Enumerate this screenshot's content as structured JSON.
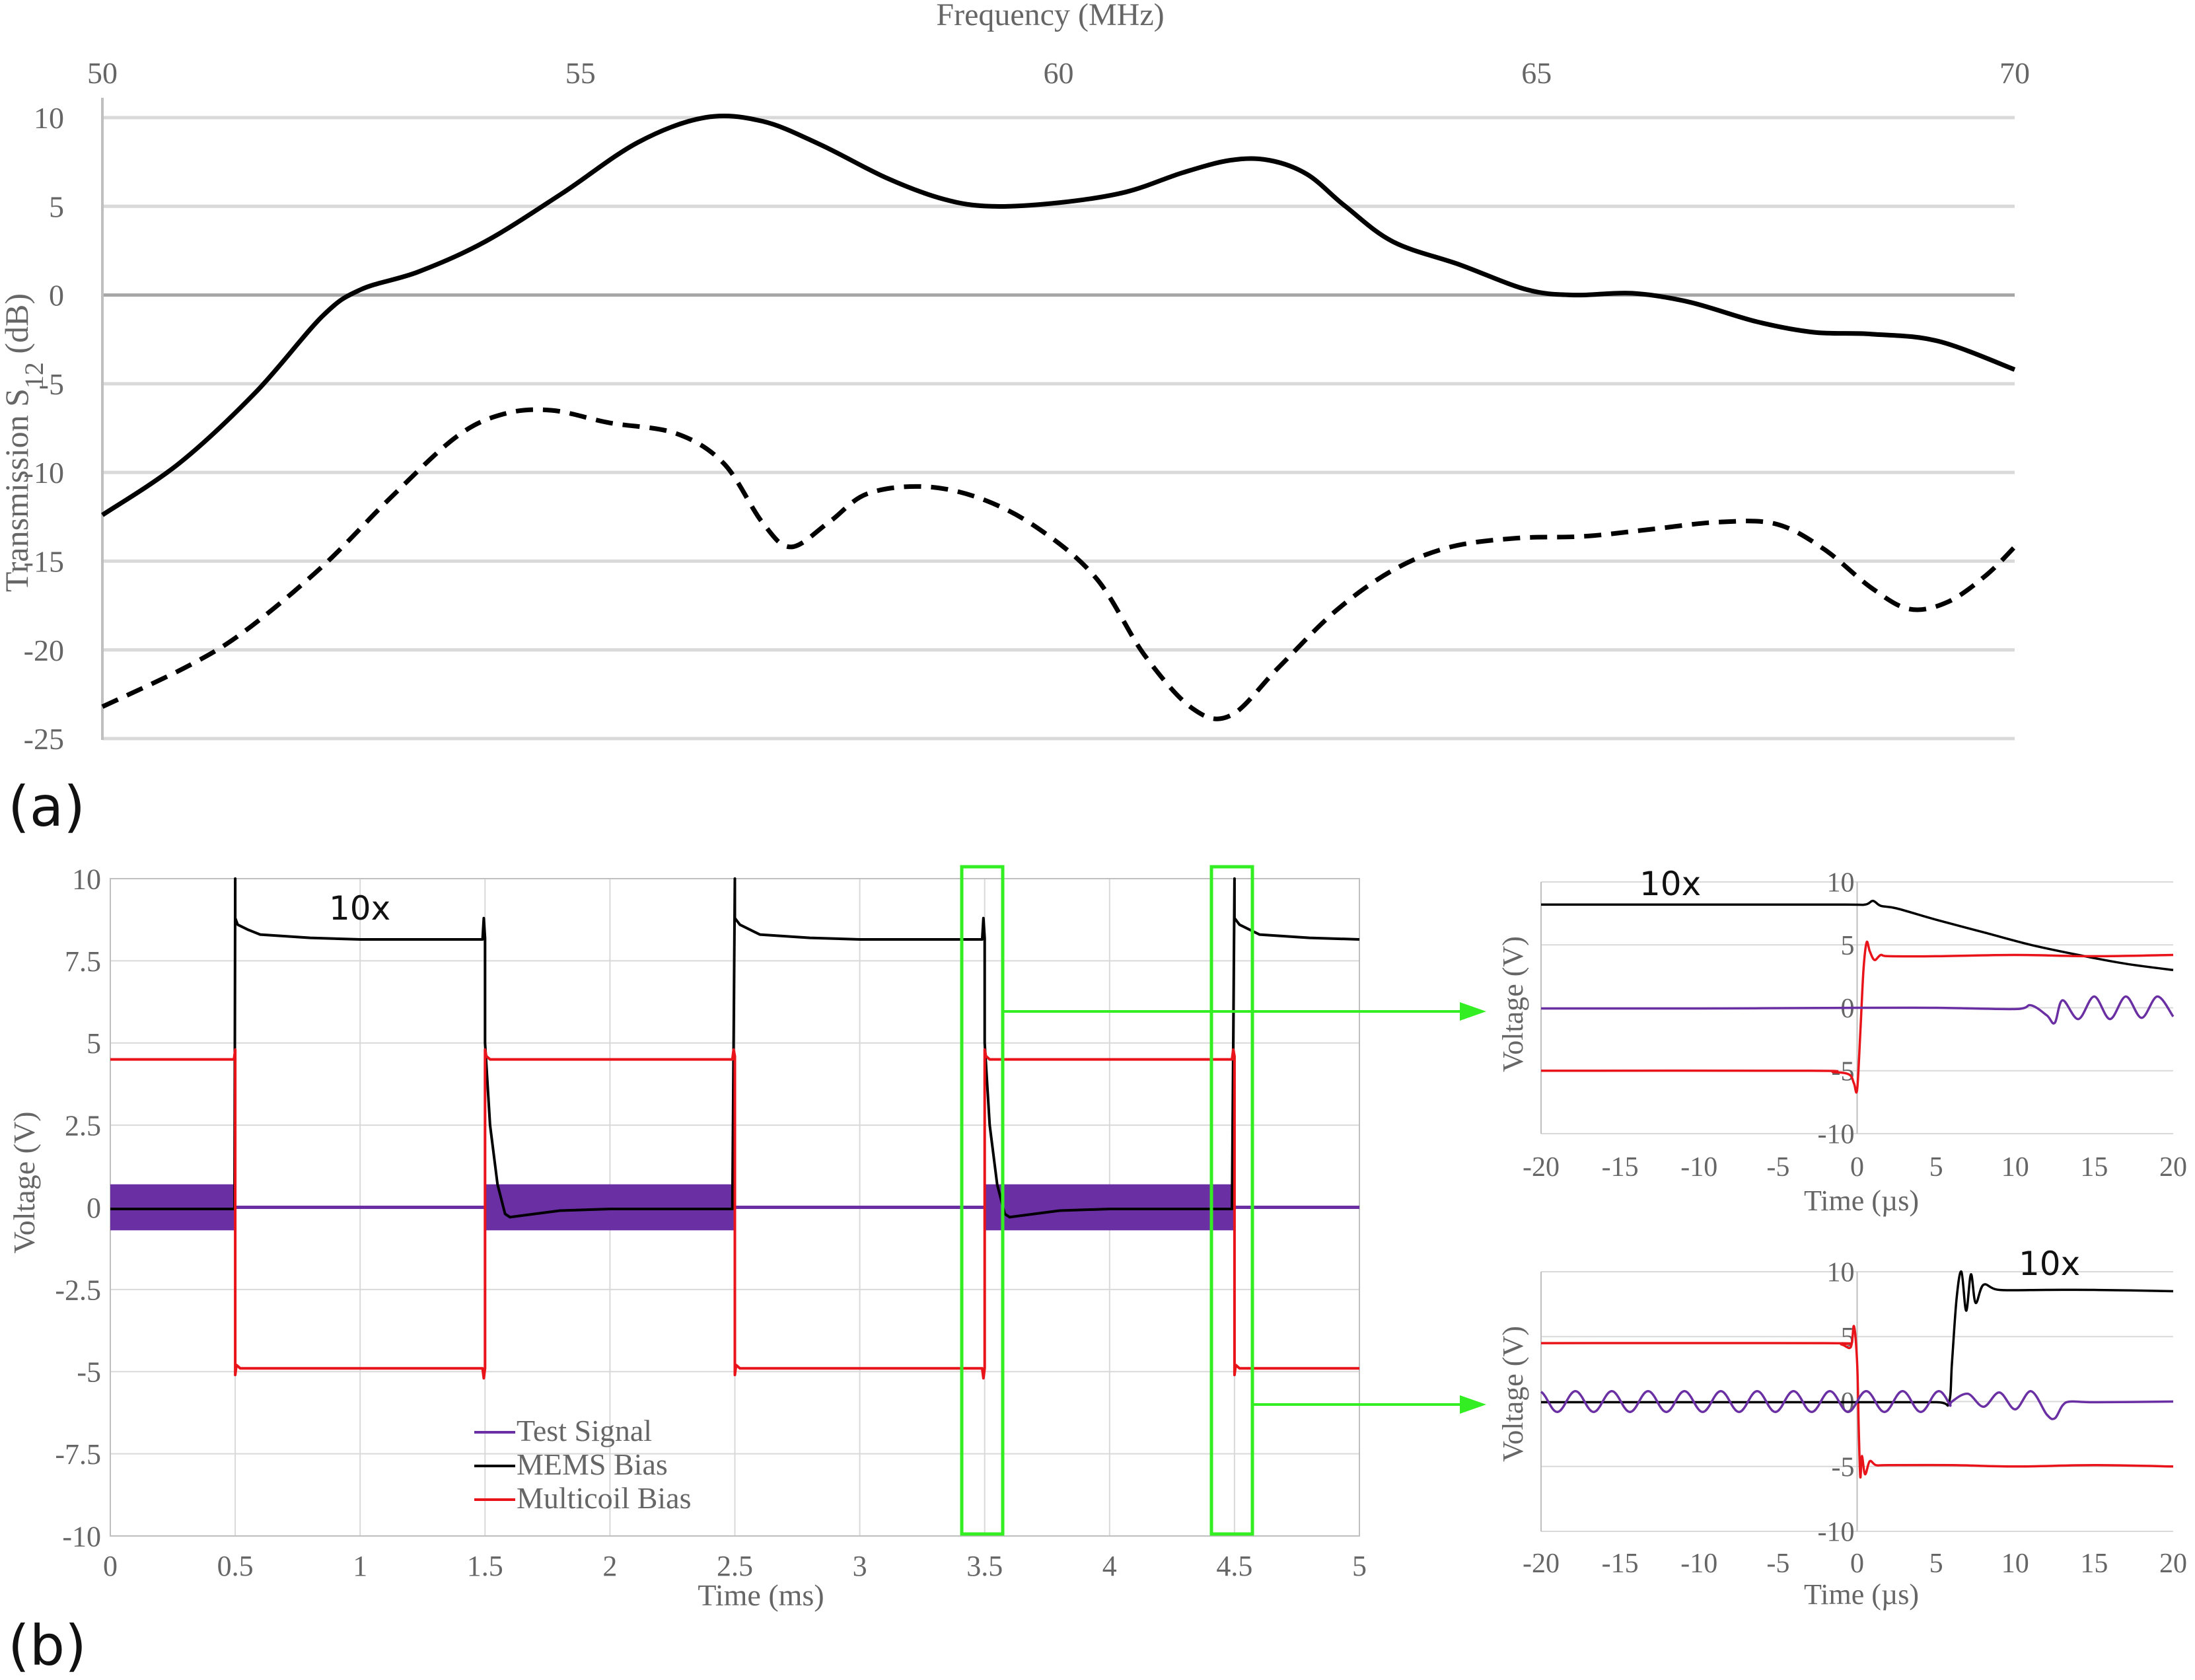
{
  "figure": {
    "panel_a_label": "(a)",
    "panel_b_label": "(b)"
  },
  "colors": {
    "test_signal": "#6a2fa3",
    "mems_bias": "#000000",
    "multicoil_bias": "#e8141a",
    "zoom_box": "#33ee22",
    "grid": "#d9d9d9",
    "text": "#666666"
  },
  "chart_data": [
    {
      "id": "a",
      "type": "line",
      "xlabel": "Frequency (MHz)",
      "ylabel": "Transmission S12 (dB)",
      "ylabel_main": "Transmission S",
      "ylabel_sub": "12",
      "ylabel_unit": " (dB)",
      "xlim": [
        50,
        70
      ],
      "ylim": [
        -25,
        10
      ],
      "xticks": [
        "50",
        "55",
        "60",
        "65",
        "70"
      ],
      "yticks": [
        "10",
        "5",
        "0",
        "-5",
        "-10",
        "-15",
        "-20",
        "-25"
      ],
      "grid": "horizontal",
      "series": [
        {
          "style": "solid",
          "x": [
            50,
            50.8,
            51.6,
            52.3,
            52.7,
            53.3,
            54,
            54.8,
            55.6,
            56.3,
            56.9,
            57.5,
            58.2,
            58.8,
            59.3,
            60,
            60.7,
            61.3,
            61.8,
            62.2,
            62.6,
            63,
            63.5,
            64.2,
            64.9,
            65.4,
            66,
            66.6,
            67.3,
            67.9,
            68.5,
            69.2,
            70
          ],
          "y": [
            -12.4,
            -9.5,
            -5.5,
            -1.2,
            0.3,
            1.3,
            3,
            5.7,
            8.6,
            10,
            9.8,
            8.5,
            6.6,
            5.4,
            5,
            5.2,
            5.8,
            6.9,
            7.6,
            7.6,
            6.8,
            5,
            3,
            1.7,
            0.3,
            0,
            0.1,
            -0.4,
            -1.5,
            -2.1,
            -2.2,
            -2.6,
            -4.2
          ]
        },
        {
          "style": "dashed",
          "x": [
            50,
            50.9,
            51.5,
            52.3,
            53,
            53.7,
            54.2,
            54.7,
            55.3,
            56,
            56.5,
            56.9,
            57.2,
            57.6,
            58,
            58.6,
            59.2,
            59.8,
            60.4,
            60.9,
            61.4,
            61.8,
            62.3,
            62.9,
            63.5,
            64.1,
            64.8,
            65.5,
            66.2,
            66.9,
            67.5,
            68,
            68.5,
            68.9,
            69.3,
            69.7,
            70
          ],
          "y": [
            -23.2,
            -20.9,
            -18.9,
            -15.3,
            -11.5,
            -8,
            -6.7,
            -6.5,
            -7.2,
            -7.8,
            -9.5,
            -12.8,
            -14.2,
            -12.8,
            -11.2,
            -10.8,
            -11.5,
            -13.2,
            -16,
            -20.3,
            -23.3,
            -23.7,
            -21,
            -17.8,
            -15.5,
            -14.2,
            -13.7,
            -13.6,
            -13.2,
            -12.8,
            -12.9,
            -14.3,
            -16.5,
            -17.7,
            -17.3,
            -15.8,
            -14.2
          ]
        }
      ]
    },
    {
      "id": "b-main",
      "type": "line",
      "xlabel": "Time (ms)",
      "ylabel": "Voltage (V)",
      "xlim": [
        0,
        5
      ],
      "ylim": [
        -10,
        10
      ],
      "xticks": [
        "0",
        "0.5",
        "1",
        "1.5",
        "2",
        "2.5",
        "3",
        "3.5",
        "4",
        "4.5",
        "5"
      ],
      "yticks": [
        "10",
        "7.5",
        "5",
        "2.5",
        "0",
        "-2.5",
        "-5",
        "-7.5",
        "-10"
      ],
      "grid": "both",
      "annotation": "10x",
      "legend": [
        "Test Signal",
        "MEMS Bias",
        "Multicoil Bias"
      ],
      "test_signal_bursts": [
        [
          0,
          0.5
        ],
        [
          1.5,
          2.5
        ],
        [
          3.5,
          4.5
        ]
      ],
      "test_signal_amplitude": 0.7,
      "series": [
        {
          "name": "MEMS Bias",
          "x": [
            0,
            0.497,
            0.5,
            0.5,
            0.51,
            0.55,
            0.6,
            0.8,
            1.0,
            1.3,
            1.49,
            1.495,
            1.5,
            1.5,
            1.52,
            1.55,
            1.58,
            1.6,
            1.65,
            1.8,
            2.0,
            2.3,
            2.49,
            2.5,
            2.5,
            2.52,
            2.6,
            2.8,
            3.0,
            3.3,
            3.49,
            3.495,
            3.5,
            3.5,
            3.52,
            3.55,
            3.58,
            3.6,
            3.65,
            3.8,
            4.0,
            4.3,
            4.49,
            4.5,
            4.5,
            4.52,
            4.6,
            4.8,
            5.0
          ],
          "y": [
            -0.05,
            -0.05,
            10,
            8.8,
            8.6,
            8.45,
            8.3,
            8.2,
            8.15,
            8.15,
            8.15,
            8.8,
            8.2,
            5,
            2.5,
            0.7,
            -0.2,
            -0.3,
            -0.25,
            -0.1,
            -0.05,
            -0.05,
            -0.05,
            10,
            8.8,
            8.6,
            8.3,
            8.2,
            8.15,
            8.15,
            8.15,
            8.8,
            8.2,
            5,
            2.5,
            0.7,
            -0.2,
            -0.3,
            -0.25,
            -0.1,
            -0.05,
            -0.05,
            -0.05,
            10,
            8.8,
            8.6,
            8.3,
            8.2,
            8.15
          ]
        },
        {
          "name": "Multicoil Bias",
          "x": [
            0,
            0.495,
            0.5,
            0.5,
            0.505,
            0.52,
            1.49,
            1.495,
            1.5,
            1.5,
            1.505,
            1.52,
            2.49,
            2.495,
            2.5,
            2.5,
            2.505,
            2.52,
            3.49,
            3.495,
            3.5,
            3.5,
            3.505,
            3.52,
            4.49,
            4.495,
            4.5,
            4.5,
            4.505,
            4.52,
            5.0
          ],
          "y": [
            4.5,
            4.5,
            4.8,
            -5.1,
            -4.8,
            -4.9,
            -4.9,
            -5.2,
            -4.9,
            4.8,
            4.6,
            4.5,
            4.5,
            4.8,
            4.6,
            -5.1,
            -4.8,
            -4.9,
            -4.9,
            -5.2,
            -4.9,
            4.8,
            4.6,
            4.5,
            4.5,
            4.8,
            4.6,
            -5.1,
            -4.8,
            -4.9,
            -4.9
          ]
        }
      ]
    },
    {
      "id": "b-zoom-top",
      "type": "line",
      "xlabel": "Time (µs)",
      "ylabel": "Voltage (V)",
      "xlim": [
        -20,
        20
      ],
      "ylim": [
        -10,
        10
      ],
      "xticks": [
        "-20",
        "-15",
        "-10",
        "-5",
        "0",
        "5",
        "10",
        "15",
        "20"
      ],
      "yticks": [
        "10",
        "5",
        "0",
        "-5",
        "-10"
      ],
      "grid": "both",
      "annotation": "10x",
      "series": [
        {
          "name": "MEMS Bias",
          "x": [
            -20,
            -10,
            -1,
            0.5,
            1,
            1.5,
            2.5,
            5,
            8,
            11,
            14,
            17,
            20
          ],
          "y": [
            8.2,
            8.2,
            8.2,
            8.2,
            8.5,
            8.1,
            7.9,
            7.0,
            6.0,
            5.0,
            4.2,
            3.5,
            3.0
          ]
        },
        {
          "name": "Multicoil Bias",
          "x": [
            -20,
            -3,
            -1.5,
            -0.5,
            -0.2,
            0,
            0.2,
            0.4,
            0.6,
            0.8,
            1.1,
            1.5,
            2,
            5,
            10,
            15,
            20
          ],
          "y": [
            -5,
            -5,
            -5.1,
            -5.3,
            -6.0,
            -6.5,
            -2,
            3,
            5.2,
            4.5,
            3.8,
            4.2,
            4.1,
            4.1,
            4.2,
            4.1,
            4.2
          ]
        },
        {
          "name": "Test Signal",
          "x": [
            -20,
            -10,
            0,
            5,
            10,
            11,
            12,
            12.5,
            13,
            14,
            15,
            16,
            17,
            18,
            19,
            20
          ],
          "y": [
            -0.05,
            -0.05,
            0,
            0,
            -0.1,
            0.2,
            -0.6,
            -1.2,
            0.6,
            -0.9,
            0.9,
            -0.9,
            0.9,
            -0.8,
            0.9,
            -0.7
          ]
        }
      ]
    },
    {
      "id": "b-zoom-bottom",
      "type": "line",
      "xlabel": "Time (µs)",
      "ylabel": "Voltage (V)",
      "xlim": [
        -20,
        20
      ],
      "ylim": [
        -10,
        10
      ],
      "xticks": [
        "-20",
        "-15",
        "-10",
        "-5",
        "0",
        "5",
        "10",
        "15",
        "20"
      ],
      "yticks": [
        "10",
        "5",
        "0",
        "-5",
        "-10"
      ],
      "grid": "both",
      "annotation": "10x",
      "series": [
        {
          "name": "Multicoil Bias",
          "x": [
            -20,
            -2,
            -1,
            -0.4,
            -0.2,
            0,
            0.1,
            0.2,
            0.3,
            0.5,
            0.8,
            1.2,
            2,
            6,
            10,
            15,
            20
          ],
          "y": [
            4.5,
            4.5,
            4.4,
            4.2,
            5.8,
            3,
            -2,
            -5.8,
            -4.2,
            -5.6,
            -4.6,
            -4.9,
            -4.9,
            -4.9,
            -5.0,
            -4.9,
            -5.0
          ]
        },
        {
          "name": "MEMS Bias",
          "x": [
            -20,
            -10,
            0,
            5,
            5.8,
            6.0,
            6.3,
            6.6,
            6.9,
            7.2,
            7.5,
            8,
            9,
            12,
            15,
            20
          ],
          "y": [
            -0.05,
            -0.05,
            -0.05,
            -0.05,
            -0.1,
            3,
            8,
            10,
            7,
            9.8,
            7.6,
            9.0,
            8.6,
            8.6,
            8.6,
            8.5
          ]
        },
        {
          "name": "Test Signal",
          "amplitude": 0.8,
          "period": 2.3,
          "x": [
            -20,
            6
          ],
          "tail_x": [
            6,
            7,
            8,
            9,
            10,
            11,
            12,
            12.5,
            13,
            13.5,
            15,
            20
          ],
          "tail_y": [
            0,
            0.6,
            -0.4,
            0.7,
            -0.6,
            0.8,
            -1.0,
            -1.3,
            -0.3,
            0,
            -0.05,
            0
          ]
        }
      ]
    }
  ]
}
